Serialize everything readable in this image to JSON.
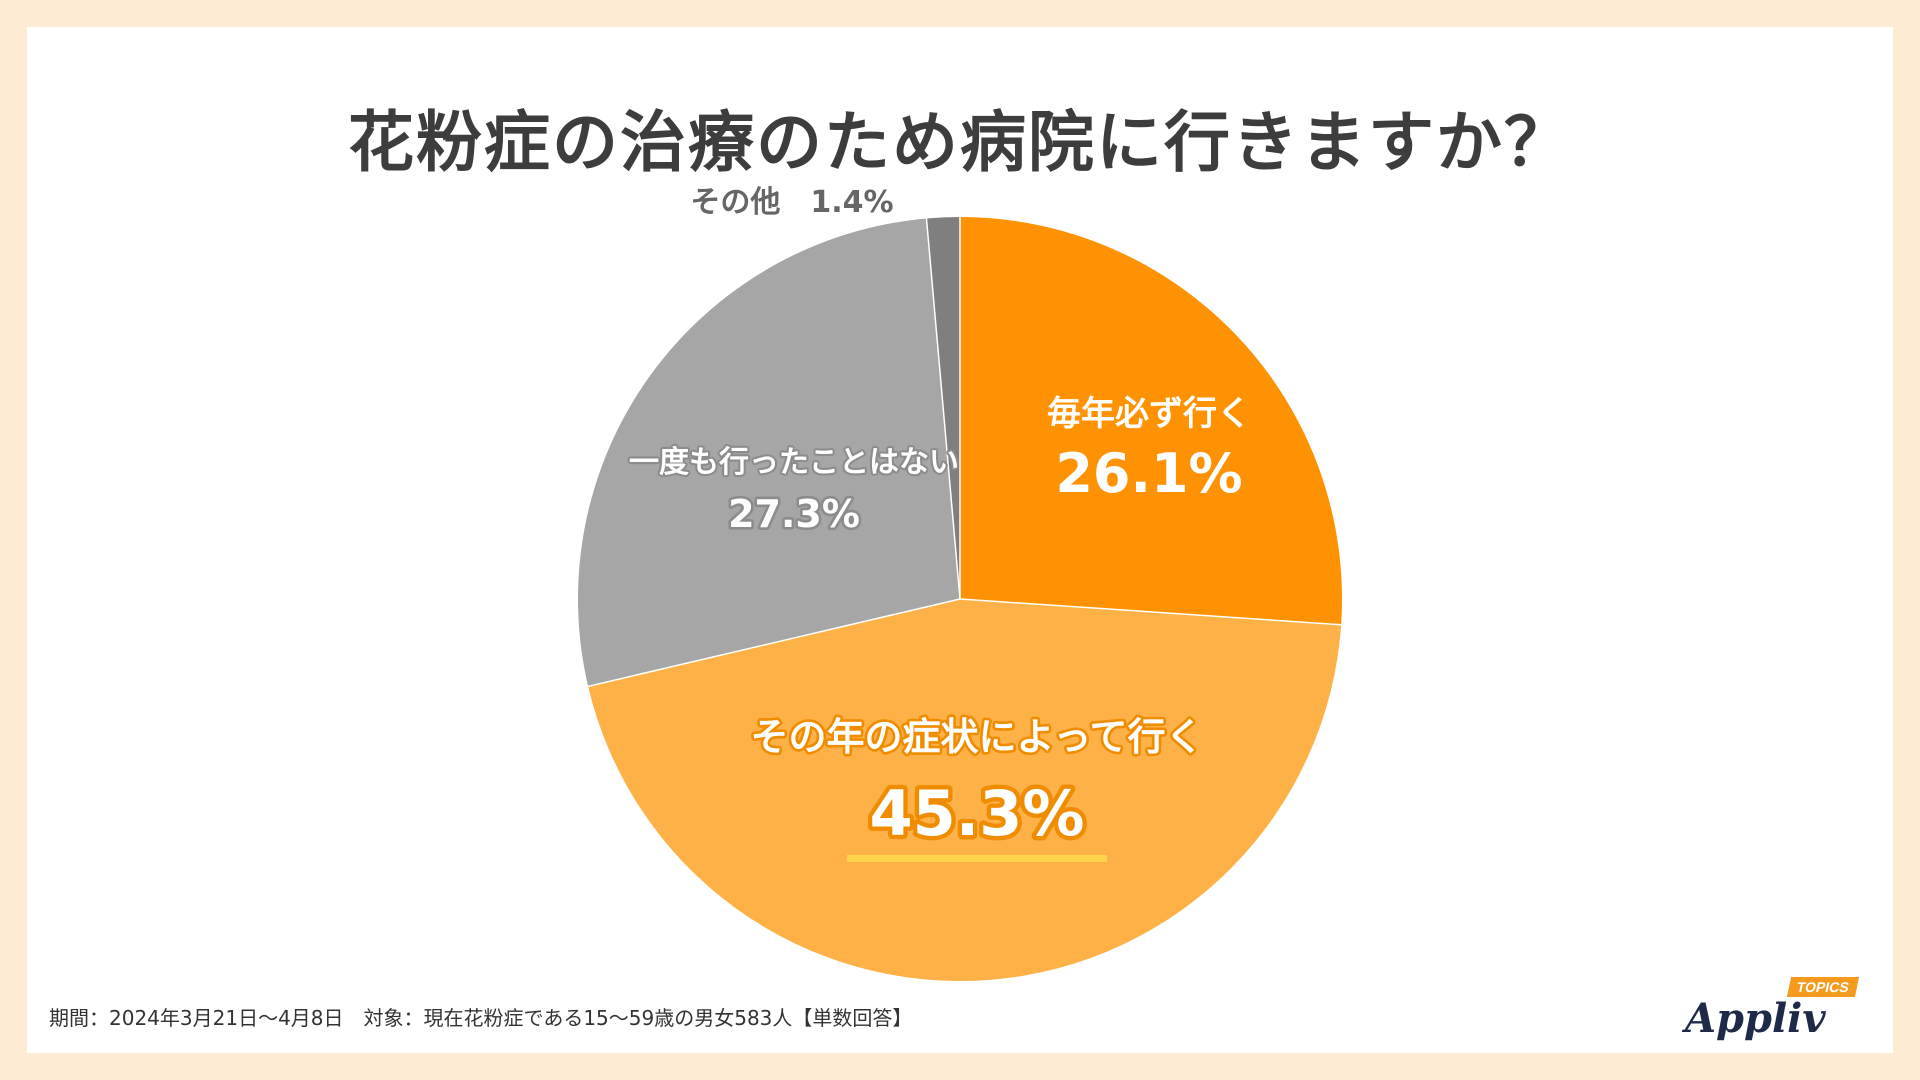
{
  "title": "花粉症の治療のため病院に行きますか？",
  "footnote": "期間：2024年3月21日～4月8日　対象：現在花粉症である15～59歳の男女583人【単数回答】",
  "logo": {
    "main": "Appliv",
    "tag": "TOPICS"
  },
  "chart_data": {
    "type": "pie",
    "title": "花粉症の治療のため病院に行きますか？",
    "start": "12 o'clock, clockwise",
    "slices": [
      {
        "label": "毎年必ず行く",
        "value": 26.1,
        "value_label": "26.1%",
        "color": "#ff9202"
      },
      {
        "label": "その年の症状によって行く",
        "value": 45.3,
        "value_label": "45.3%",
        "color": "#fdb147",
        "highlight": true
      },
      {
        "label": "一度も行ったことはない",
        "value": 27.3,
        "value_label": "27.3%",
        "color": "#a6a6a6"
      },
      {
        "label": "その他",
        "value": 1.4,
        "value_label": "1.4%",
        "color": "#7f7f7f"
      }
    ],
    "colors": {
      "label_stroke_orange": "#ff9202",
      "label_stroke_light": "#f08c00",
      "label_stroke_gray": "#8c8c8c",
      "underline": "#ffd44d",
      "outside_label": "#666666"
    }
  }
}
